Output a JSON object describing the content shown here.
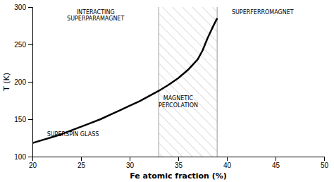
{
  "chart_data": {
    "type": "line",
    "xlabel": "Fe atomic fraction (%)",
    "ylabel": "T (K)",
    "x": [
      20,
      21,
      22,
      23,
      24,
      25,
      26,
      27,
      28,
      29,
      30,
      31,
      32,
      33,
      34,
      35,
      36,
      37,
      37.5,
      38,
      38.5,
      39
    ],
    "values": [
      118,
      122,
      126,
      130,
      135,
      140,
      145,
      150,
      156,
      162,
      168,
      174,
      181,
      188,
      196,
      205,
      216,
      230,
      242,
      258,
      272,
      285
    ],
    "color": "#000000",
    "xlim": [
      20,
      50
    ],
    "ylim": [
      100,
      300
    ],
    "xticks": [
      20,
      25,
      30,
      35,
      40,
      45,
      50
    ],
    "yticks": [
      100,
      150,
      200,
      250,
      300
    ],
    "vlines": [
      {
        "x": 33.0,
        "color": "#aaaaaa"
      },
      {
        "x": 39.0,
        "color": "#aaaaaa"
      }
    ],
    "annotations": [
      {
        "text": "INTERACTING",
        "x": 26.5,
        "y": 293,
        "align": "center"
      },
      {
        "text": "SUPERPARAMAGNET",
        "x": 26.5,
        "y": 285,
        "align": "center"
      },
      {
        "text": "SUPERSPIN GLASS",
        "x": 21.5,
        "y": 130,
        "align": "left"
      },
      {
        "text": "MAGNETIC",
        "x": 35.0,
        "y": 178,
        "align": "center"
      },
      {
        "text": "PERCOLATION",
        "x": 35.0,
        "y": 169,
        "align": "center"
      },
      {
        "text": "SUPERFERROMAGNET",
        "x": 40.5,
        "y": 293,
        "align": "left"
      }
    ],
    "grid": false
  }
}
